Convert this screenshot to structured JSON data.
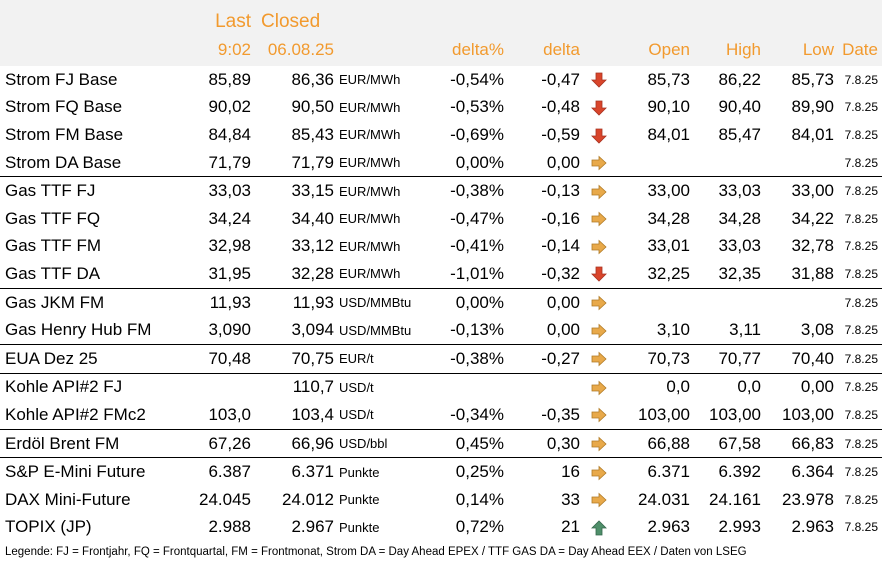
{
  "header": {
    "last_label": "Last",
    "closed_label": "Closed",
    "last_time": "9:02",
    "closed_date": "06.08.25",
    "delta_pct_label": "delta%",
    "delta_label": "delta",
    "open_label": "Open",
    "high_label": "High",
    "low_label": "Low",
    "date_label": "Date"
  },
  "rows": [
    {
      "name": "Strom FJ Base",
      "last": "85,89",
      "closed": "86,36",
      "unit": "EUR/MWh",
      "delta_pct": "-0,54%",
      "delta": "-0,47",
      "trend": "down",
      "open": "85,73",
      "high": "86,22",
      "low": "85,73",
      "date": "7.8.25",
      "sep": false
    },
    {
      "name": "Strom FQ Base",
      "last": "90,02",
      "closed": "90,50",
      "unit": "EUR/MWh",
      "delta_pct": "-0,53%",
      "delta": "-0,48",
      "trend": "down",
      "open": "90,10",
      "high": "90,40",
      "low": "89,90",
      "date": "7.8.25",
      "sep": false
    },
    {
      "name": "Strom FM Base",
      "last": "84,84",
      "closed": "85,43",
      "unit": "EUR/MWh",
      "delta_pct": "-0,69%",
      "delta": "-0,59",
      "trend": "down",
      "open": "84,01",
      "high": "85,47",
      "low": "84,01",
      "date": "7.8.25",
      "sep": false
    },
    {
      "name": "Strom DA Base",
      "last": "71,79",
      "closed": "71,79",
      "unit": "EUR/MWh",
      "delta_pct": "0,00%",
      "delta": "0,00",
      "trend": "flat",
      "open": "",
      "high": "",
      "low": "",
      "date": "7.8.25",
      "sep": false
    },
    {
      "name": "Gas TTF FJ",
      "last": "33,03",
      "closed": "33,15",
      "unit": "EUR/MWh",
      "delta_pct": "-0,38%",
      "delta": "-0,13",
      "trend": "flat",
      "open": "33,00",
      "high": "33,03",
      "low": "33,00",
      "date": "7.8.25",
      "sep": true
    },
    {
      "name": "Gas TTF FQ",
      "last": "34,24",
      "closed": "34,40",
      "unit": "EUR/MWh",
      "delta_pct": "-0,47%",
      "delta": "-0,16",
      "trend": "flat",
      "open": "34,28",
      "high": "34,28",
      "low": "34,22",
      "date": "7.8.25",
      "sep": false
    },
    {
      "name": "Gas TTF FM",
      "last": "32,98",
      "closed": "33,12",
      "unit": "EUR/MWh",
      "delta_pct": "-0,41%",
      "delta": "-0,14",
      "trend": "flat",
      "open": "33,01",
      "high": "33,03",
      "low": "32,78",
      "date": "7.8.25",
      "sep": false
    },
    {
      "name": "Gas TTF DA",
      "last": "31,95",
      "closed": "32,28",
      "unit": "EUR/MWh",
      "delta_pct": "-1,01%",
      "delta": "-0,32",
      "trend": "down",
      "open": "32,25",
      "high": "32,35",
      "low": "31,88",
      "date": "7.8.25",
      "sep": false
    },
    {
      "name": "Gas JKM FM",
      "last": "11,93",
      "closed": "11,93",
      "unit": "USD/MMBtu",
      "delta_pct": "0,00%",
      "delta": "0,00",
      "trend": "flat",
      "open": "",
      "high": "",
      "low": "",
      "date": "7.8.25",
      "sep": true
    },
    {
      "name": "Gas Henry Hub FM",
      "last": "3,090",
      "closed": "3,094",
      "unit": "USD/MMBtu",
      "delta_pct": "-0,13%",
      "delta": "0,00",
      "trend": "flat",
      "open": "3,10",
      "high": "3,11",
      "low": "3,08",
      "date": "7.8.25",
      "sep": false
    },
    {
      "name": "EUA Dez 25",
      "last": "70,48",
      "closed": "70,75",
      "unit": "EUR/t",
      "delta_pct": "-0,38%",
      "delta": "-0,27",
      "trend": "flat",
      "open": "70,73",
      "high": "70,77",
      "low": "70,40",
      "date": "7.8.25",
      "sep": true
    },
    {
      "name": "Kohle API#2 FJ",
      "last": "",
      "closed": "110,7",
      "unit": "USD/t",
      "delta_pct": "",
      "delta": "",
      "trend": "flat",
      "open": "0,0",
      "high": "0,0",
      "low": "0,00",
      "date": "7.8.25",
      "sep": true
    },
    {
      "name": "Kohle API#2 FMc2",
      "last": "103,0",
      "closed": "103,4",
      "unit": "USD/t",
      "delta_pct": "-0,34%",
      "delta": "-0,35",
      "trend": "flat",
      "open": "103,00",
      "high": "103,00",
      "low": "103,00",
      "date": "7.8.25",
      "sep": false
    },
    {
      "name": "Erdöl Brent FM",
      "last": "67,26",
      "closed": "66,96",
      "unit": "USD/bbl",
      "delta_pct": "0,45%",
      "delta": "0,30",
      "trend": "flat",
      "open": "66,88",
      "high": "67,58",
      "low": "66,83",
      "date": "7.8.25",
      "sep": true
    },
    {
      "name": "S&P E-Mini Future",
      "last": "6.387",
      "closed": "6.371",
      "unit": "Punkte",
      "delta_pct": "0,25%",
      "delta": "16",
      "trend": "flat",
      "open": "6.371",
      "high": "6.392",
      "low": "6.364",
      "date": "7.8.25",
      "sep": true
    },
    {
      "name": "DAX Mini-Future",
      "last": "24.045",
      "closed": "24.012",
      "unit": "Punkte",
      "delta_pct": "0,14%",
      "delta": "33",
      "trend": "flat",
      "open": "24.031",
      "high": "24.161",
      "low": "23.978",
      "date": "7.8.25",
      "sep": false
    },
    {
      "name": "TOPIX (JP)",
      "last": "2.988",
      "closed": "2.967",
      "unit": "Punkte",
      "delta_pct": "0,72%",
      "delta": "21",
      "trend": "up",
      "open": "2.963",
      "high": "2.993",
      "low": "2.963",
      "date": "7.8.25",
      "sep": false
    }
  ],
  "legend": "Legende: FJ = Frontjahr, FQ = Frontquartal, FM = Frontmonat, Strom DA = Day Ahead EPEX / TTF GAS DA = Day Ahead EEX / Daten von LSEG",
  "colors": {
    "header_text": "#f29a2e",
    "header_bg": "#f2f2f2",
    "arrow_down": "#d9452b",
    "arrow_flat": "#e8a94a",
    "arrow_up": "#4f8f6a"
  },
  "icons": {
    "down": "arrow-down-icon",
    "flat": "arrow-right-icon",
    "up": "arrow-up-icon"
  }
}
